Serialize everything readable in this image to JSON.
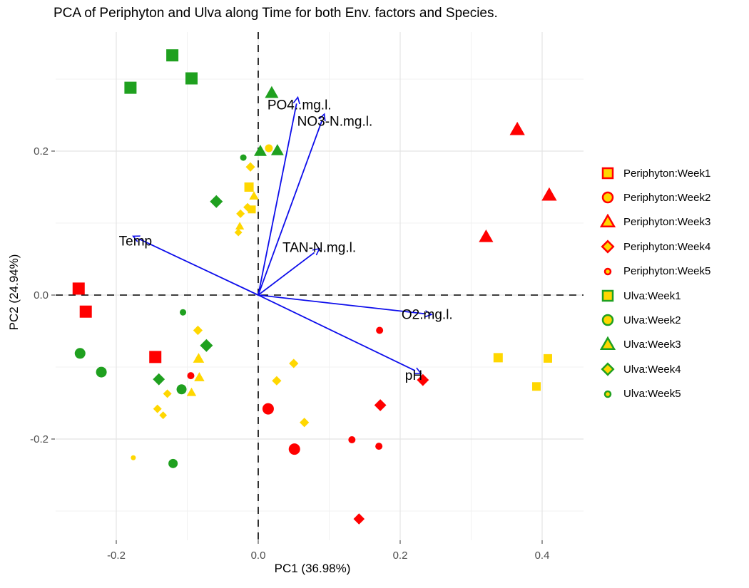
{
  "title": "PCA of Periphyton and Ulva along Time for both Env. factors and Species.",
  "colors": {
    "periphyton": "#FF0000",
    "ulva": "#1FA01F",
    "mixed_yellow": "#FFD700",
    "arrow_blue": "#0D0DEB",
    "grid_major": "#E4E4E4",
    "grid_minor": "#F1F1F1",
    "tick_text": "#4D4D4D",
    "zero_line": "#000000"
  },
  "chart_data": {
    "type": "scatter",
    "title": "PCA of Periphyton and Ulva along Time for both Env. factors and Species.",
    "xlabel": "PC1 (36.98%)",
    "ylabel": "PC2 (24.94%)",
    "xlim": [
      -0.285,
      0.458
    ],
    "ylim": [
      -0.341,
      0.365
    ],
    "grid": true,
    "x_ticks": {
      "major": [
        -0.2,
        0.0,
        0.2,
        0.4
      ],
      "labels": [
        "-0.2",
        "0.0",
        "0.2",
        "0.4"
      ],
      "minor": [
        -0.1,
        0.1,
        0.3
      ]
    },
    "y_ticks": {
      "major": [
        -0.2,
        0.0,
        0.2
      ],
      "labels": [
        "-0.2",
        "0.0",
        "0.2"
      ],
      "minor": [
        -0.3,
        -0.1,
        0.1,
        0.3
      ]
    },
    "zero_lines": {
      "x": 0.0,
      "y": 0.0,
      "style": "dashed"
    },
    "series": [
      {
        "name": "Periphyton:Week1",
        "color_key": "periphyton",
        "shape": "square",
        "in_legend": true,
        "points": [
          [
            -0.253,
            0.009,
            17
          ],
          [
            -0.243,
            -0.023,
            17
          ],
          [
            -0.145,
            -0.086,
            17
          ]
        ]
      },
      {
        "name": "Periphyton:Week2",
        "color_key": "periphyton",
        "shape": "circle",
        "in_legend": true,
        "points": [
          [
            0.014,
            -0.158,
            16
          ],
          [
            0.051,
            -0.214,
            16
          ]
        ]
      },
      {
        "name": "Periphyton:Week3",
        "color_key": "periphyton",
        "shape": "triangle",
        "in_legend": true,
        "points": [
          [
            0.365,
            0.229,
            19
          ],
          [
            0.41,
            0.138,
            19
          ],
          [
            0.321,
            0.08,
            18
          ]
        ]
      },
      {
        "name": "Periphyton:Week4",
        "color_key": "periphyton",
        "shape": "diamond",
        "in_legend": true,
        "points": [
          [
            0.232,
            -0.118,
            14
          ],
          [
            0.172,
            -0.153,
            14
          ],
          [
            0.142,
            -0.311,
            13
          ]
        ]
      },
      {
        "name": "Periphyton:Week5",
        "color_key": "periphyton",
        "shape": "circle",
        "in_legend": true,
        "points": [
          [
            0.171,
            -0.049,
            10
          ],
          [
            -0.095,
            -0.112,
            10
          ],
          [
            0.132,
            -0.201,
            10
          ],
          [
            0.17,
            -0.21,
            10
          ]
        ]
      },
      {
        "name": "Ulva:Week1",
        "color_key": "ulva",
        "shape": "square",
        "in_legend": true,
        "points": [
          [
            -0.121,
            0.333,
            17
          ],
          [
            -0.094,
            0.301,
            17
          ],
          [
            -0.18,
            0.288,
            17
          ]
        ]
      },
      {
        "name": "Ulva:Week2",
        "color_key": "ulva",
        "shape": "circle",
        "in_legend": true,
        "points": [
          [
            -0.251,
            -0.081,
            15
          ],
          [
            -0.221,
            -0.107,
            15
          ],
          [
            -0.108,
            -0.131,
            14
          ],
          [
            -0.12,
            -0.234,
            13
          ]
        ]
      },
      {
        "name": "Ulva:Week3",
        "color_key": "ulva",
        "shape": "triangle",
        "in_legend": true,
        "points": [
          [
            0.019,
            0.28,
            17
          ],
          [
            0.003,
            0.199,
            16
          ],
          [
            0.027,
            0.2,
            16
          ]
        ]
      },
      {
        "name": "Ulva:Week4",
        "color_key": "ulva",
        "shape": "diamond",
        "in_legend": true,
        "points": [
          [
            -0.059,
            0.13,
            15
          ],
          [
            -0.073,
            -0.07,
            15
          ],
          [
            -0.14,
            -0.117,
            14
          ]
        ]
      },
      {
        "name": "Ulva:Week5",
        "color_key": "ulva",
        "shape": "circle",
        "in_legend": true,
        "points": [
          [
            -0.021,
            0.191,
            9
          ],
          [
            -0.106,
            -0.024,
            9
          ]
        ]
      },
      {
        "name": "Yellow:Week1",
        "color_key": "mixed_yellow",
        "shape": "square",
        "in_legend": false,
        "points": [
          [
            -0.013,
            0.15,
            13
          ],
          [
            -0.009,
            0.119,
            11
          ],
          [
            0.338,
            -0.087,
            13
          ],
          [
            0.408,
            -0.088,
            12
          ],
          [
            0.392,
            -0.127,
            12
          ]
        ]
      },
      {
        "name": "Yellow:Week2",
        "color_key": "mixed_yellow",
        "shape": "circle",
        "in_legend": false,
        "points": [
          [
            0.015,
            0.204,
            11
          ]
        ]
      },
      {
        "name": "Yellow:Week3",
        "color_key": "mixed_yellow",
        "shape": "triangle",
        "in_legend": false,
        "points": [
          [
            -0.006,
            0.137,
            12
          ],
          [
            -0.026,
            0.095,
            11
          ],
          [
            -0.084,
            -0.089,
            14
          ],
          [
            -0.083,
            -0.115,
            13
          ],
          [
            -0.094,
            -0.136,
            12
          ]
        ]
      },
      {
        "name": "Yellow:Week4",
        "color_key": "mixed_yellow",
        "shape": "diamond",
        "in_legend": false,
        "points": [
          [
            -0.011,
            0.178,
            11
          ],
          [
            -0.015,
            0.122,
            10
          ],
          [
            -0.025,
            0.113,
            10
          ],
          [
            -0.028,
            0.087,
            9
          ],
          [
            -0.085,
            -0.049,
            11
          ],
          [
            -0.128,
            -0.137,
            10
          ],
          [
            -0.142,
            -0.158,
            10
          ],
          [
            -0.134,
            -0.167,
            9
          ],
          [
            0.05,
            -0.095,
            11
          ],
          [
            0.026,
            -0.119,
            11
          ],
          [
            0.065,
            -0.177,
            11
          ]
        ]
      },
      {
        "name": "Yellow:Week5",
        "color_key": "mixed_yellow",
        "shape": "circle",
        "in_legend": false,
        "points": [
          [
            -0.176,
            -0.226,
            7
          ]
        ]
      }
    ],
    "arrows": [
      {
        "label": "Temp",
        "x": -0.168,
        "y": 0.078,
        "label_x": -0.173,
        "label_y": 0.075
      },
      {
        "label": "PO4..mg.l.",
        "x": 0.054,
        "y": 0.266,
        "label_x": 0.058,
        "label_y": 0.264
      },
      {
        "label": "NO3-N.mg.l.",
        "x": 0.09,
        "y": 0.243,
        "label_x": 0.108,
        "label_y": 0.241
      },
      {
        "label": "TAN-N.mg.l.",
        "x": 0.079,
        "y": 0.059,
        "label_x": 0.086,
        "label_y": 0.066
      },
      {
        "label": "O2.mg.l.",
        "x": 0.235,
        "y": -0.026,
        "label_x": 0.238,
        "label_y": -0.027
      },
      {
        "label": "pH",
        "x": 0.221,
        "y": -0.105,
        "label_x": 0.219,
        "label_y": -0.112
      }
    ]
  },
  "legend": {
    "items": [
      {
        "label": "Periphyton:Week1",
        "shape": "square",
        "border_key": "periphyton",
        "fill_key": "mixed_yellow",
        "size": 14
      },
      {
        "label": "Periphyton:Week2",
        "shape": "circle",
        "border_key": "periphyton",
        "fill_key": "mixed_yellow",
        "size": 14
      },
      {
        "label": "Periphyton:Week3",
        "shape": "triangle",
        "border_key": "periphyton",
        "fill_key": "mixed_yellow",
        "size": 16
      },
      {
        "label": "Periphyton:Week4",
        "shape": "diamond",
        "border_key": "periphyton",
        "fill_key": "mixed_yellow",
        "size": 13
      },
      {
        "label": "Periphyton:Week5",
        "shape": "circle",
        "border_key": "periphyton",
        "fill_key": "mixed_yellow",
        "size": 8
      },
      {
        "label": "Ulva:Week1",
        "shape": "square",
        "border_key": "ulva",
        "fill_key": "mixed_yellow",
        "size": 14
      },
      {
        "label": "Ulva:Week2",
        "shape": "circle",
        "border_key": "ulva",
        "fill_key": "mixed_yellow",
        "size": 14
      },
      {
        "label": "Ulva:Week3",
        "shape": "triangle",
        "border_key": "ulva",
        "fill_key": "mixed_yellow",
        "size": 16
      },
      {
        "label": "Ulva:Week4",
        "shape": "diamond",
        "border_key": "ulva",
        "fill_key": "mixed_yellow",
        "size": 13
      },
      {
        "label": "Ulva:Week5",
        "shape": "circle",
        "border_key": "ulva",
        "fill_key": "mixed_yellow",
        "size": 8
      }
    ]
  }
}
